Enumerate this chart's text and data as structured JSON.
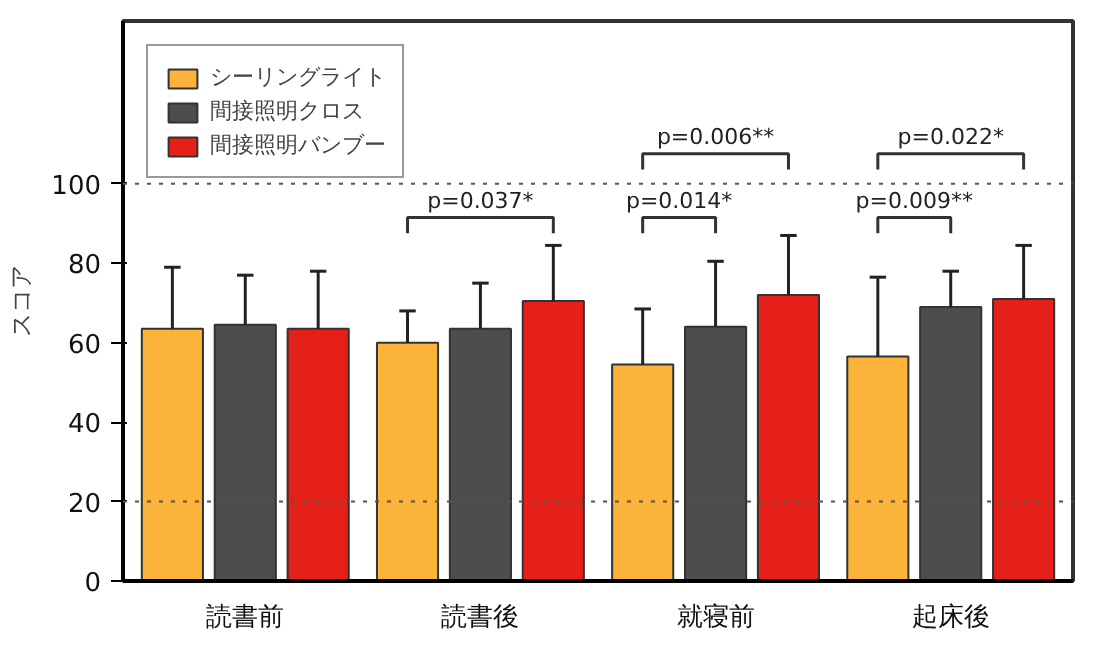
{
  "chart_data": {
    "type": "bar",
    "ylabel": "スコア",
    "categories": [
      "読書前",
      "読書後",
      "就寝前",
      "起床後"
    ],
    "series": [
      {
        "name": "シーリングライト",
        "color": "#fbb33a",
        "values": [
          63.5,
          60,
          54.5,
          56.5
        ],
        "errors": [
          [
            63.5,
            79
          ],
          [
            60,
            68
          ],
          [
            54.5,
            68.5
          ],
          [
            56.5,
            76.5
          ]
        ]
      },
      {
        "name": "間接照明クロス",
        "color": "#4d4d4d",
        "values": [
          64.5,
          63.5,
          64,
          69
        ],
        "errors": [
          [
            64.5,
            77
          ],
          [
            63.5,
            75
          ],
          [
            64,
            80.5
          ],
          [
            69,
            78
          ]
        ]
      },
      {
        "name": "間接照明バンブー",
        "color": "#e52019",
        "values": [
          63.5,
          70.5,
          72,
          71
        ],
        "errors": [
          [
            63.5,
            78
          ],
          [
            70.5,
            84.5
          ],
          [
            72,
            87
          ],
          [
            71,
            84.5
          ]
        ]
      }
    ],
    "ylim": [
      0,
      141
    ],
    "yticks": [
      0,
      20,
      40,
      60,
      80,
      100
    ],
    "grid": false,
    "legend": "top left",
    "ref_lines": [
      {
        "axis": "y",
        "value": 20,
        "line_style": "dotted"
      },
      {
        "axis": "y",
        "value": 100,
        "line_style": "dotted"
      }
    ],
    "annotations": [
      "p=0.037*",
      "p=0.006**",
      "p=0.014*",
      "p=0.022*",
      "p=0.009**"
    ]
  }
}
